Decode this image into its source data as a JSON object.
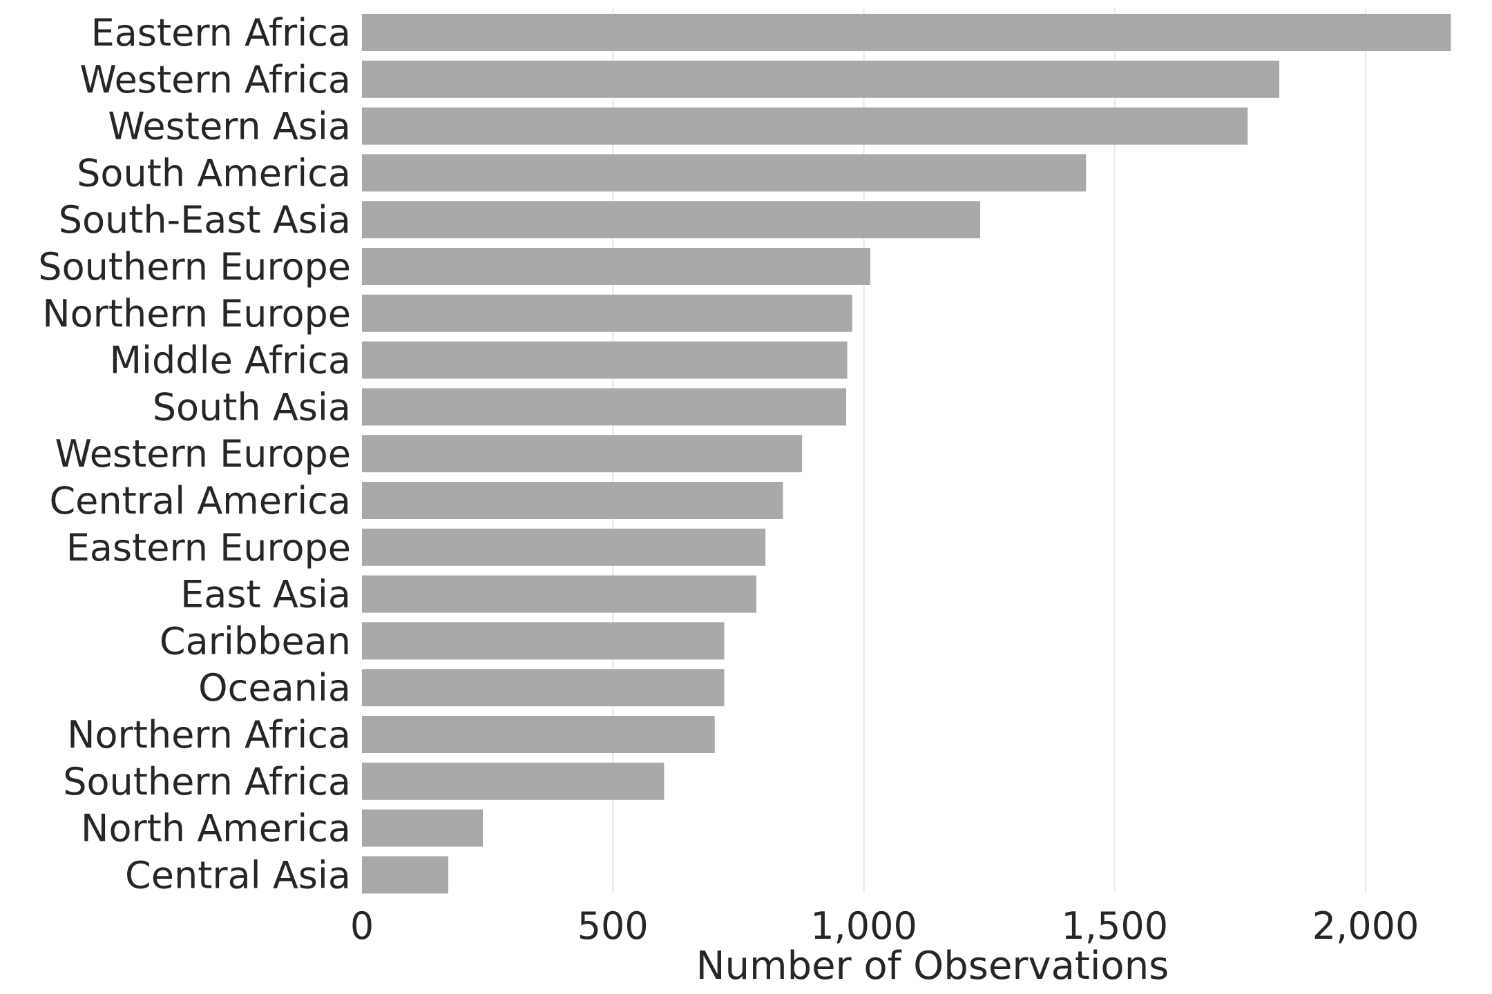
{
  "chart_data": {
    "type": "bar",
    "orientation": "horizontal",
    "categories": [
      "Eastern Africa",
      "Western Africa",
      "Western Asia",
      "South America",
      "South-East Asia",
      "Southern Europe",
      "Northern Europe",
      "Middle Africa",
      "South Asia",
      "Western Europe",
      "Central America",
      "Eastern Europe",
      "East Asia",
      "Caribbean",
      "Oceania",
      "Northern Africa",
      "Southern Africa",
      "North America",
      "Central Asia"
    ],
    "values": [
      2170,
      1828,
      1765,
      1443,
      1232,
      1013,
      977,
      967,
      965,
      877,
      839,
      804,
      786,
      722,
      722,
      703,
      602,
      241,
      172
    ],
    "xlabel": "Number of Observations",
    "ylabel": "",
    "xlim": [
      0,
      2200
    ],
    "xticks": [
      0,
      500,
      1000,
      1500,
      2000
    ],
    "xtick_labels": [
      "0",
      "500",
      "1,000",
      "1,500",
      "2,000"
    ],
    "grid": "vertical",
    "legend": "none",
    "bar_color": "#a9a9a9",
    "grid_color": "#ebebeb",
    "text_color": "#262626"
  }
}
